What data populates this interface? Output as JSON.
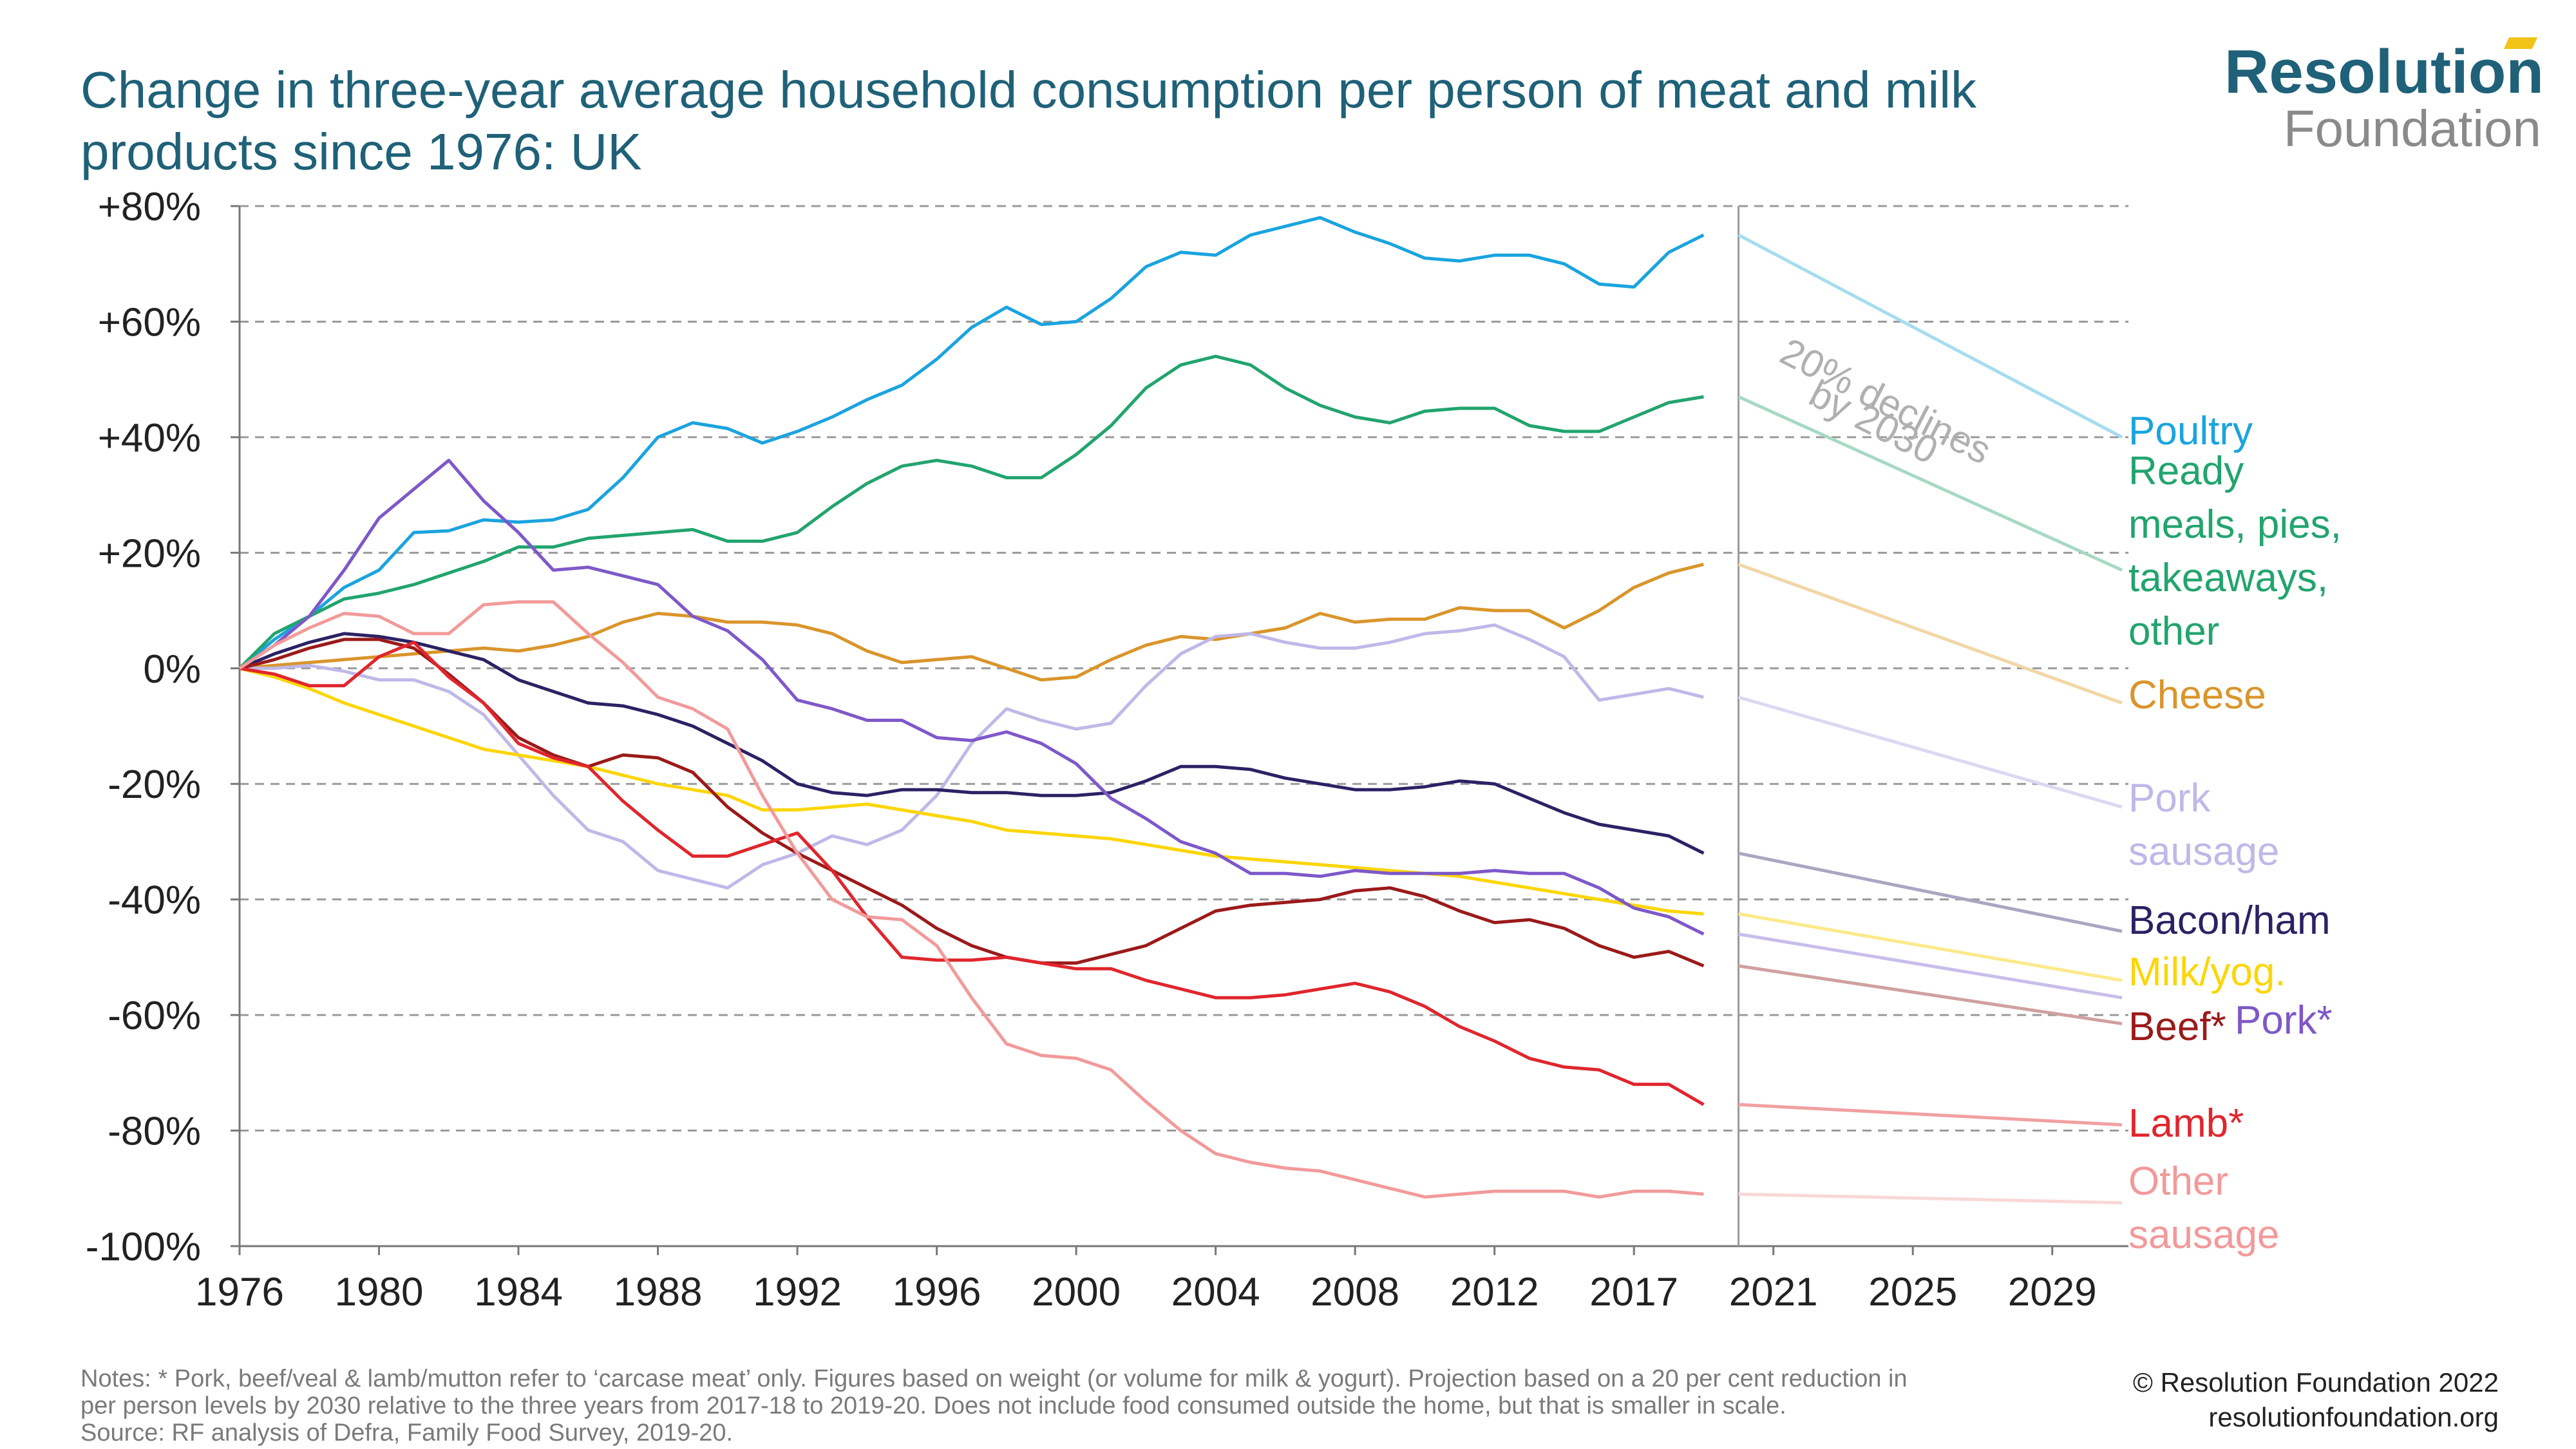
{
  "title": "Change in three-year average household consumption per person of meat and milk products since 1976: UK",
  "logo": {
    "name": "Resolution",
    "sub": "Foundation"
  },
  "annotation": {
    "line1": "20% declines",
    "line2": "by 2030"
  },
  "notes": {
    "line1": "Notes: * Pork, beef/veal & lamb/mutton refer to ‘carcase meat’ only. Figures based on weight (or volume for milk & yogurt). Projection based on a 20 per cent reduction in",
    "line2": "per person levels by 2030 relative to the three years from 2017-18 to 2019-20. Does not include food consumed outside the home, but that is smaller in scale.",
    "line3": "Source: RF analysis of Defra, Family Food Survey, 2019-20."
  },
  "credit": {
    "line1": "© Resolution Foundation 2022",
    "line2": "resolutionfoundation.org"
  },
  "chart_data": {
    "type": "line",
    "title": "Change in three-year average household consumption per person of meat and milk products since 1976: UK",
    "x_tick_labels": [
      "1976",
      "1980",
      "1984",
      "1988",
      "1992",
      "1996",
      "2000",
      "2004",
      "2008",
      "2012",
      "2017",
      "2021",
      "2025",
      "2029"
    ],
    "y_tick_labels": [
      "+80%",
      "+60%",
      "+40%",
      "+20%",
      "0%",
      "-20%",
      "-40%",
      "-60%",
      "-80%",
      "-100%"
    ],
    "ylim": [
      -100,
      80
    ],
    "xlim": [
      1976,
      2030
    ],
    "projection_start": 2019,
    "projection_end": 2030,
    "grid": "horizontal dashed",
    "series": [
      {
        "name": "Poultry",
        "label_lines": [
          "Poultry"
        ],
        "color": "#1aa4df",
        "projection_color": "#a6dcef",
        "values": [
          0,
          5,
          9,
          14,
          17,
          23.5,
          23.8,
          25.7,
          25.3,
          25.7,
          27.5,
          33,
          40,
          42.5,
          41.5,
          39,
          41,
          43.5,
          46.5,
          49,
          53.5,
          59,
          62.5,
          59.5,
          60,
          64,
          69.5,
          72,
          71.5,
          75,
          76.5,
          78,
          75.5,
          73.5,
          71,
          70.5,
          71.5,
          71.5,
          70,
          66.5,
          66,
          72,
          75
        ],
        "projection": 40
      },
      {
        "name": "Ready meals, pies, takeaways, other",
        "label_lines": [
          "Ready",
          "meals, pies,",
          "takeaways,",
          "other"
        ],
        "color": "#22a46e",
        "projection_color": "#a7d9c3",
        "values": [
          0,
          6,
          9,
          12,
          13,
          14.5,
          16.5,
          18.5,
          21,
          21,
          22.5,
          23,
          23.5,
          24,
          22,
          22,
          23.5,
          28,
          32,
          35,
          36,
          35,
          33,
          33,
          37,
          42,
          48.5,
          52.5,
          54,
          52.5,
          48.5,
          45.5,
          43.5,
          42.5,
          44.5,
          45,
          45,
          42,
          41,
          41,
          43.5,
          46,
          47
        ],
        "projection": 17
      },
      {
        "name": "Cheese",
        "label_lines": [
          "Cheese"
        ],
        "color": "#d9952b",
        "projection_color": "#f2d6a6",
        "values": [
          0,
          0.5,
          1,
          1.5,
          2,
          2.5,
          3,
          3.5,
          3,
          4,
          5.5,
          8,
          9.5,
          9,
          8,
          8,
          7.5,
          6,
          3,
          1,
          1.5,
          2,
          0,
          -2,
          -1.5,
          1.5,
          4,
          5.5,
          5,
          6,
          7,
          9.5,
          8,
          8.5,
          8.5,
          10.5,
          10,
          10,
          7,
          10,
          14,
          16.5,
          18
        ],
        "projection": -6
      },
      {
        "name": "Pork sausage",
        "label_lines": [
          "Pork",
          "sausage"
        ],
        "color": "#c0b8e8",
        "projection_color": "#dcd7f2",
        "values": [
          0,
          0,
          0.5,
          -0.5,
          -2,
          -2,
          -4,
          -8,
          -15,
          -22,
          -28,
          -30,
          -35,
          -36.5,
          -38,
          -34,
          -32,
          -29,
          -30.5,
          -28,
          -22,
          -13,
          -7,
          -9,
          -10.5,
          -9.5,
          -3,
          2.5,
          5.5,
          6,
          4.5,
          3.5,
          3.5,
          4.5,
          6,
          6.5,
          7.5,
          5,
          2,
          -5.5,
          -4.5,
          -3.5,
          -5
        ],
        "projection": -24
      },
      {
        "name": "Bacon/ham",
        "label_lines": [
          "Bacon/ham"
        ],
        "color": "#2b2264",
        "projection_color": "#aaa6c2",
        "values": [
          0,
          2.5,
          4.5,
          6,
          5.5,
          4.5,
          3,
          1.5,
          -2,
          -4,
          -6,
          -6.5,
          -8,
          -10,
          -13,
          -16,
          -20,
          -21.5,
          -22,
          -21,
          -21,
          -21.5,
          -21.5,
          -22,
          -22,
          -21.5,
          -19.5,
          -17,
          -17,
          -17.5,
          -19,
          -20,
          -21,
          -21,
          -20.5,
          -19.5,
          -20,
          -22.5,
          -25,
          -27,
          -28,
          -29,
          -32
        ],
        "projection": -45.5
      },
      {
        "name": "Milk/yog.",
        "label_lines": [
          "Milk/yog."
        ],
        "color": "#fcd607",
        "projection_color": "#fde98a",
        "values": [
          0,
          -1.5,
          -3.5,
          -6,
          -8,
          -10,
          -12,
          -14,
          -15,
          -16,
          -17,
          -18.5,
          -20,
          -21,
          -22,
          -24.5,
          -24.5,
          -24,
          -23.5,
          -24.5,
          -25.5,
          -26.5,
          -28,
          -28.5,
          -29,
          -29.5,
          -30.5,
          -31.5,
          -32.5,
          -33,
          -33.5,
          -34,
          -34.5,
          -35,
          -35.5,
          -36,
          -37,
          -38,
          -39,
          -40,
          -41,
          -42,
          -42.5
        ],
        "projection": -54
      },
      {
        "name": "Pork*",
        "label_lines": [
          "Pork*"
        ],
        "color": "#7e58c9",
        "projection_color": "#c9bdeb",
        "values": [
          0,
          4,
          9,
          17,
          26,
          31,
          36,
          29,
          23.5,
          17,
          17.5,
          16,
          14.5,
          9,
          6.5,
          1.5,
          -5.5,
          -7,
          -9,
          -9,
          -12,
          -12.5,
          -11,
          -13,
          -16.5,
          -22.5,
          -26,
          -30,
          -32,
          -35.5,
          -35.5,
          -36,
          -35,
          -35.5,
          -35.5,
          -35.5,
          -35,
          -35.5,
          -35.5,
          -38,
          -41.5,
          -43,
          -46
        ],
        "projection": -57
      },
      {
        "name": "Beef*",
        "label_lines": [
          "Beef*"
        ],
        "color": "#9b1a1a",
        "projection_color": "#d0a0a0",
        "values": [
          0,
          1.5,
          3.5,
          5,
          5,
          3.5,
          -1,
          -6,
          -12,
          -15,
          -17,
          -15,
          -15.5,
          -18,
          -24,
          -28.5,
          -32,
          -35,
          -38,
          -41,
          -45,
          -48,
          -50,
          -51,
          -51,
          -49.5,
          -48,
          -45,
          -42,
          -41,
          -40.5,
          -40,
          -38.5,
          -38,
          -39.5,
          -42,
          -44,
          -43.5,
          -45,
          -48,
          -50,
          -49,
          -51.5
        ],
        "projection": -61.5
      },
      {
        "name": "Lamb*",
        "label_lines": [
          "Lamb*"
        ],
        "color": "#e0262d",
        "projection_color": "#f2a0a0",
        "values": [
          0,
          -1,
          -3,
          -3,
          2,
          4.5,
          -1.5,
          -6,
          -13,
          -15.5,
          -17,
          -23,
          -28,
          -32.5,
          -32.5,
          -30.5,
          -28.5,
          -35,
          -43,
          -50,
          -50.5,
          -50.5,
          -50,
          -51,
          -52,
          -52,
          -54,
          -55.5,
          -57,
          -57,
          -56.5,
          -55.5,
          -54.5,
          -56,
          -58.5,
          -62,
          -64.5,
          -67.5,
          -69,
          -69.5,
          -72,
          -72,
          -75.5
        ],
        "projection": -79
      },
      {
        "name": "Other sausage",
        "label_lines": [
          "Other",
          "sausage"
        ],
        "color": "#f29a9a",
        "projection_color": "#f9d8d8",
        "values": [
          0,
          4,
          7,
          9.5,
          9,
          6,
          6,
          11,
          11.5,
          11.5,
          6,
          1,
          -5,
          -7,
          -10.5,
          -22,
          -32,
          -40,
          -43,
          -43.5,
          -48,
          -57,
          -65,
          -67,
          -67.5,
          -69.5,
          -75,
          -80,
          -84,
          -85.5,
          -86.5,
          -87,
          -88.5,
          -90,
          -91.5,
          -91,
          -90.5,
          -90.5,
          -90.5,
          -91.5,
          -90.5,
          -90.5,
          -91
        ],
        "projection": -92.5
      }
    ]
  }
}
